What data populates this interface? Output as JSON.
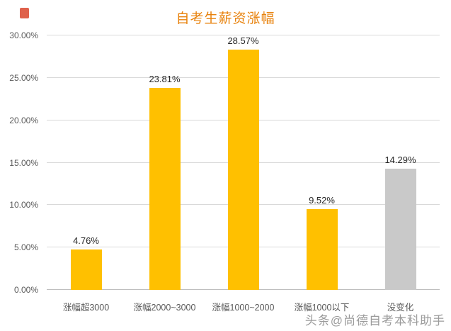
{
  "chart_data": {
    "type": "bar",
    "title": "自考生薪资涨幅",
    "categories": [
      "涨幅超3000",
      "涨幅2000~3000",
      "涨幅1000~2000",
      "涨幅1000以下",
      "没变化"
    ],
    "values": [
      4.76,
      23.81,
      28.57,
      9.52,
      14.29
    ],
    "value_labels": [
      "4.76%",
      "23.81%",
      "28.57%",
      "9.52%",
      "14.29%"
    ],
    "ylim": [
      0,
      30
    ],
    "y_ticks": [
      "0.00%",
      "5.00%",
      "10.00%",
      "15.00%",
      "20.00%",
      "25.00%",
      "30.00%"
    ],
    "grid": true,
    "legend_position": "none",
    "bar_colors": [
      "#FFC000",
      "#FFC000",
      "#FFC000",
      "#FFC000",
      "#C9C9C9"
    ],
    "title_color": "#E8820C",
    "gridline_color": "#D9D9D9",
    "axis_label_color": "#595959",
    "value_label_color": "#262626"
  },
  "watermark": {
    "text": "头条@尚德自考本科助手",
    "color": "#9B9B9B"
  },
  "corner_mark": {
    "color": "#D9452C"
  }
}
